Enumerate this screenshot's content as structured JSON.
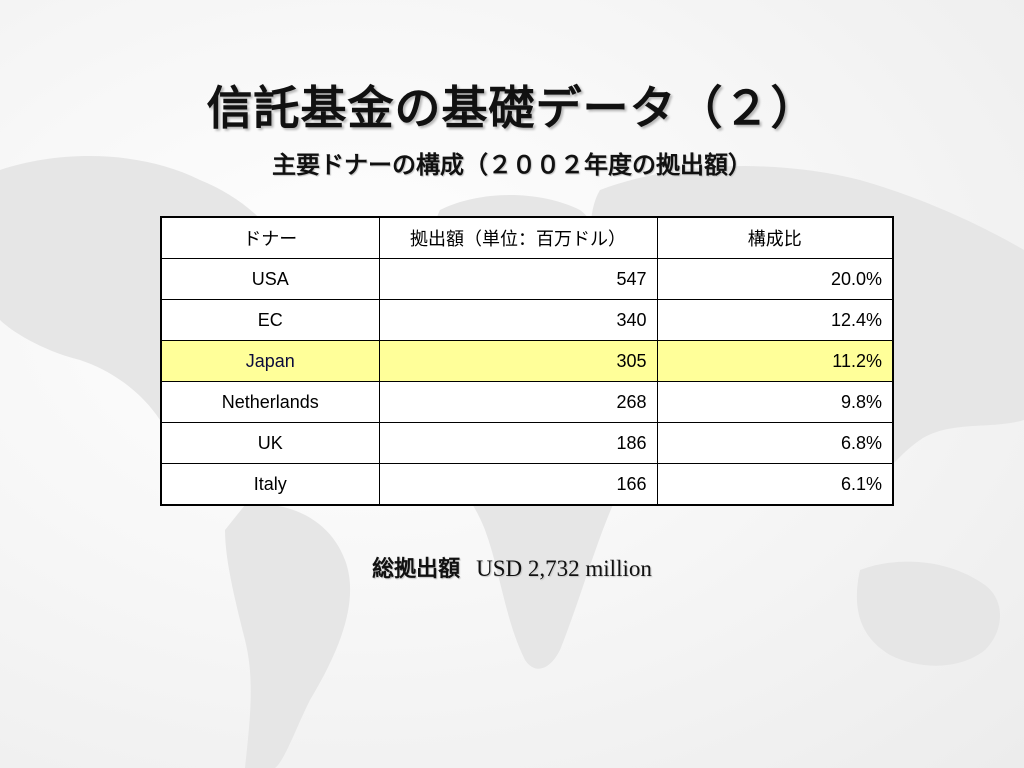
{
  "slide": {
    "title": "信託基金の基礎データ（２）",
    "subtitle": "主要ドナーの構成（２００２年度の拠出額）"
  },
  "table": {
    "headers": [
      "ドナー",
      "拠出額（単位：百万ドル）",
      "構成比"
    ],
    "rows": [
      {
        "donor": "USA",
        "amount": "547",
        "share": "20.0%"
      },
      {
        "donor": "EC",
        "amount": "340",
        "share": "12.4%"
      },
      {
        "donor": "Japan",
        "amount": "305",
        "share": "11.2%",
        "highlighted": true
      },
      {
        "donor": "Netherlands",
        "amount": "268",
        "share": "9.8%"
      },
      {
        "donor": "UK",
        "amount": "186",
        "share": "6.8%"
      },
      {
        "donor": "Italy",
        "amount": "166",
        "share": "6.1%"
      }
    ]
  },
  "total": {
    "label": "総拠出額",
    "value": "USD 2,732 million"
  },
  "colors": {
    "highlight_row": "#ffff99",
    "map_land": "#e4e4e4"
  }
}
